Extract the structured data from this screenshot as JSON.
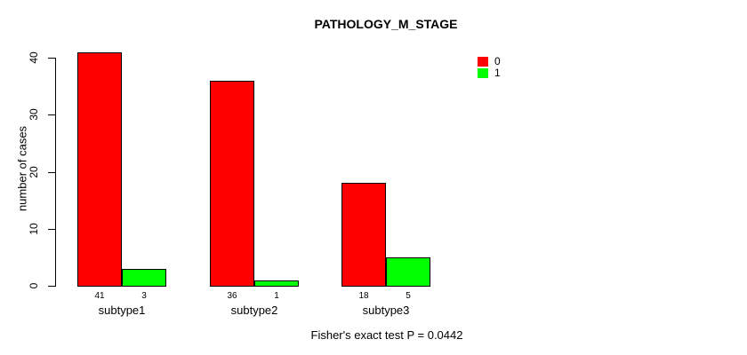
{
  "chart_data": {
    "type": "bar",
    "title": "PATHOLOGY_M_STAGE",
    "ylabel": "number of cases",
    "xlabel": "",
    "categories": [
      "subtype1",
      "subtype2",
      "subtype3"
    ],
    "series": [
      {
        "name": "0",
        "color": "#ff0000",
        "values": [
          41,
          36,
          18
        ]
      },
      {
        "name": "1",
        "color": "#00ff00",
        "values": [
          3,
          1,
          5
        ]
      }
    ],
    "ylim": [
      0,
      40
    ],
    "yticks": [
      0,
      10,
      20,
      30,
      40
    ],
    "grid": false,
    "legend_position": "top-right",
    "bar_border_color": "#000000",
    "show_values_under_bars": true,
    "annotation": "Fisher's exact test P = 0.0442"
  }
}
